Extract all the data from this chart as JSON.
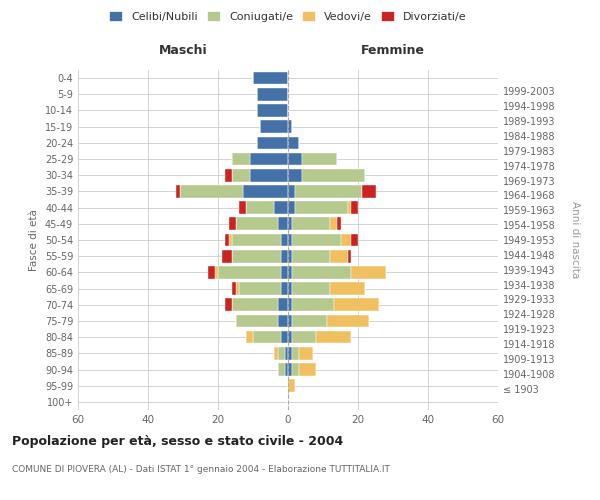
{
  "age_groups": [
    "100+",
    "95-99",
    "90-94",
    "85-89",
    "80-84",
    "75-79",
    "70-74",
    "65-69",
    "60-64",
    "55-59",
    "50-54",
    "45-49",
    "40-44",
    "35-39",
    "30-34",
    "25-29",
    "20-24",
    "15-19",
    "10-14",
    "5-9",
    "0-4"
  ],
  "birth_years": [
    "≤ 1903",
    "1904-1908",
    "1909-1913",
    "1914-1918",
    "1919-1923",
    "1924-1928",
    "1929-1933",
    "1934-1938",
    "1939-1943",
    "1944-1948",
    "1949-1953",
    "1954-1958",
    "1959-1963",
    "1964-1968",
    "1969-1973",
    "1974-1978",
    "1979-1983",
    "1984-1988",
    "1989-1993",
    "1994-1998",
    "1999-2003"
  ],
  "males": {
    "celibi": [
      0,
      0,
      1,
      1,
      2,
      3,
      3,
      2,
      2,
      2,
      2,
      3,
      4,
      13,
      11,
      11,
      9,
      8,
      9,
      9,
      10
    ],
    "coniugati": [
      0,
      0,
      2,
      2,
      8,
      12,
      13,
      12,
      18,
      14,
      14,
      12,
      8,
      18,
      5,
      5,
      0,
      0,
      0,
      0,
      0
    ],
    "vedovi": [
      0,
      0,
      0,
      1,
      2,
      0,
      0,
      1,
      1,
      0,
      1,
      0,
      0,
      0,
      0,
      0,
      0,
      0,
      0,
      0,
      0
    ],
    "divorziati": [
      0,
      0,
      0,
      0,
      0,
      0,
      2,
      1,
      2,
      3,
      1,
      2,
      2,
      1,
      2,
      0,
      0,
      0,
      0,
      0,
      0
    ]
  },
  "females": {
    "nubili": [
      0,
      0,
      1,
      1,
      1,
      1,
      1,
      1,
      1,
      1,
      1,
      1,
      2,
      2,
      4,
      4,
      3,
      1,
      0,
      0,
      0
    ],
    "coniugate": [
      0,
      0,
      2,
      2,
      7,
      10,
      12,
      11,
      17,
      11,
      14,
      11,
      15,
      19,
      18,
      10,
      0,
      0,
      0,
      0,
      0
    ],
    "vedove": [
      0,
      2,
      5,
      4,
      10,
      12,
      13,
      10,
      10,
      5,
      3,
      2,
      1,
      0,
      0,
      0,
      0,
      0,
      0,
      0,
      0
    ],
    "divorziate": [
      0,
      0,
      0,
      0,
      0,
      0,
      0,
      0,
      0,
      1,
      2,
      1,
      2,
      4,
      0,
      0,
      0,
      0,
      0,
      0,
      0
    ]
  },
  "colors": {
    "celibi": "#4472a8",
    "coniugati": "#b5c98e",
    "vedovi": "#f0c060",
    "divorziati": "#cc2222"
  },
  "xlim": 60,
  "title": "Popolazione per età, sesso e stato civile - 2004",
  "subtitle": "COMUNE DI PIOVERA (AL) - Dati ISTAT 1° gennaio 2004 - Elaborazione TUTTITALIA.IT",
  "ylabel_left": "Fasce di età",
  "ylabel_right": "Anni di nascita",
  "xlabel_male": "Maschi",
  "xlabel_female": "Femmine",
  "bg_color": "#ffffff",
  "grid_color": "#cccccc",
  "legend_labels": [
    "Celibi/Nubili",
    "Coniugati/e",
    "Vedovi/e",
    "Divorziati/e"
  ]
}
